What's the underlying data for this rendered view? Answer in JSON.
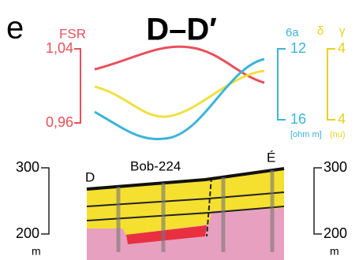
{
  "panel": {
    "letter": "e",
    "title": "D–D′"
  },
  "left_scale": {
    "label": "FSR",
    "top": "1,04",
    "bottom": "0,96"
  },
  "right_scale_1": {
    "label": "6a",
    "top": "12",
    "bottom": "16",
    "unit": "[ohm m]"
  },
  "right_scale_2": {
    "label_1": "δ",
    "label_2": "γ",
    "top": "4",
    "bottom": "4",
    "unit": "(nu)"
  },
  "section": {
    "well": "Bob-224",
    "left_end": "D",
    "right_end": "É"
  },
  "depth_left": {
    "top": "300",
    "bottom": "200",
    "unit": "m"
  },
  "depth_right": {
    "top": "300",
    "bottom": "200",
    "unit": "m"
  }
}
